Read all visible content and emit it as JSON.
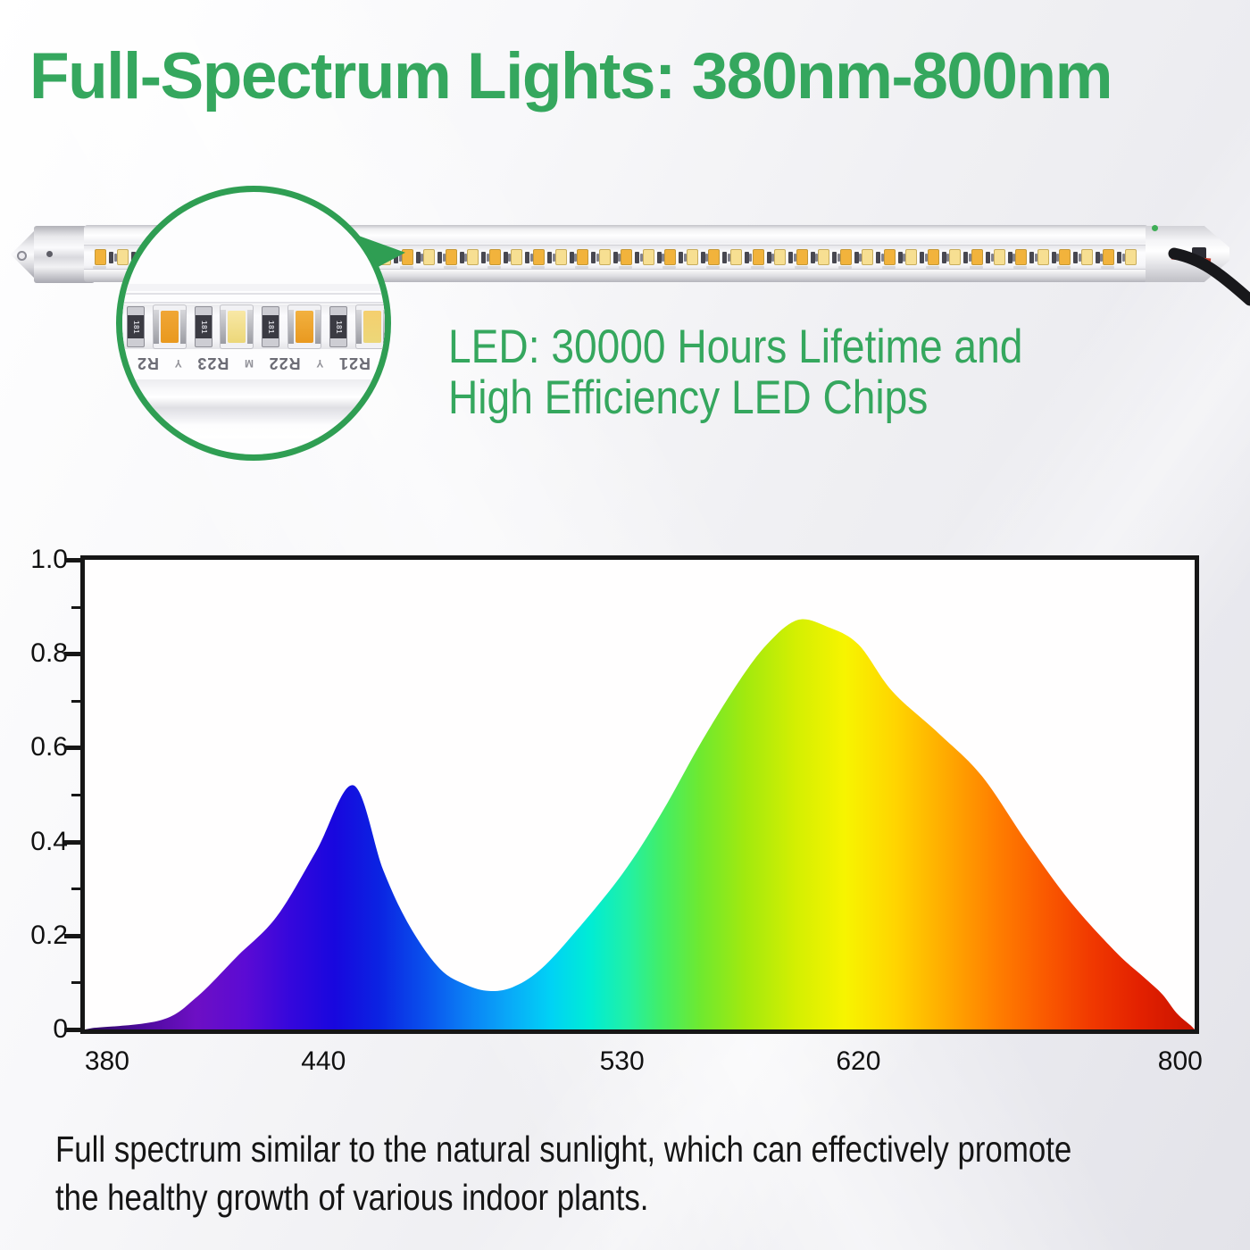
{
  "header": {
    "title": "Full-Spectrum Lights: 380nm-800nm"
  },
  "colors": {
    "accent_green": "#35a75e",
    "magnifier_ring_green": "#2f9e53",
    "axis_black": "#161616",
    "wire_black": "#18181b",
    "wire_red": "#c23a2a"
  },
  "hero": {
    "callout_line1": "LED: 30000 Hours Lifetime and",
    "callout_line2": "High Efficiency LED Chips",
    "magnifier": {
      "strip_labels": [
        "R21",
        "Y",
        "R22",
        "M",
        "R23",
        "Y",
        "R2"
      ],
      "resistor_label": "181",
      "chip_colors": [
        "#f0a636",
        "#f8e8a6",
        "#f2b140",
        "#f5cf6e"
      ]
    },
    "led_bar": {
      "chip_count": 48,
      "chip_color_warm": "#f2b33c",
      "chip_color_cool": "#f7df92"
    }
  },
  "chart_data": {
    "type": "area",
    "title": "",
    "xlabel": "",
    "ylabel": "",
    "x_range_nm": [
      380,
      800
    ],
    "ylim": [
      0,
      1
    ],
    "grid": false,
    "legend": false,
    "x_ticks": {
      "labels": [
        "380",
        "440",
        "530",
        "620",
        "800"
      ],
      "values": [
        380,
        440,
        530,
        620,
        800
      ],
      "positions": [
        0.02,
        0.215,
        0.484,
        0.697,
        0.987
      ]
    },
    "y_ticks": {
      "labels": [
        "1.0",
        "0.8",
        "0.6",
        "0.4",
        "0.2",
        "0"
      ],
      "values": [
        1.0,
        0.8,
        0.6,
        0.4,
        0.2,
        0
      ],
      "minor_values": [
        0.9,
        0.7,
        0.5,
        0.3,
        0.1
      ]
    },
    "points": [
      [
        376,
        0.003
      ],
      [
        395,
        0.02
      ],
      [
        405,
        0.07
      ],
      [
        416,
        0.155
      ],
      [
        427,
        0.24
      ],
      [
        438,
        0.38
      ],
      [
        449,
        0.52
      ],
      [
        458,
        0.34
      ],
      [
        466,
        0.22
      ],
      [
        475,
        0.13
      ],
      [
        483,
        0.095
      ],
      [
        490,
        0.082
      ],
      [
        497,
        0.09
      ],
      [
        505,
        0.125
      ],
      [
        515,
        0.2
      ],
      [
        530,
        0.33
      ],
      [
        545,
        0.46
      ],
      [
        560,
        0.61
      ],
      [
        575,
        0.745
      ],
      [
        586,
        0.825
      ],
      [
        597,
        0.872
      ],
      [
        608,
        0.858
      ],
      [
        620,
        0.82
      ],
      [
        639,
        0.72
      ],
      [
        665,
        0.63
      ],
      [
        689,
        0.54
      ],
      [
        714,
        0.4
      ],
      [
        739,
        0.27
      ],
      [
        764,
        0.165
      ],
      [
        780,
        0.11
      ],
      [
        790,
        0.075
      ],
      [
        798,
        0.035
      ],
      [
        806,
        0.008
      ]
    ],
    "peaks": [
      {
        "nm": 450,
        "intensity": 0.52
      },
      {
        "nm": 597,
        "intensity": 0.87
      }
    ],
    "valley": {
      "nm": 490,
      "intensity": 0.085
    },
    "gradient_stops": [
      [
        0.0,
        "#2d0a5e"
      ],
      [
        0.05,
        "#4c0b9b"
      ],
      [
        0.1,
        "#6d0fc4"
      ],
      [
        0.145,
        "#5b0bd4"
      ],
      [
        0.185,
        "#3507dc"
      ],
      [
        0.225,
        "#1807de"
      ],
      [
        0.265,
        "#0b23e2"
      ],
      [
        0.305,
        "#0a4fec"
      ],
      [
        0.345,
        "#0b80f5"
      ],
      [
        0.385,
        "#09acf8"
      ],
      [
        0.42,
        "#00d2f5"
      ],
      [
        0.455,
        "#00ecd5"
      ],
      [
        0.49,
        "#22f0a4"
      ],
      [
        0.52,
        "#43ee66"
      ],
      [
        0.555,
        "#6fe92f"
      ],
      [
        0.595,
        "#a2e90e"
      ],
      [
        0.64,
        "#d3ef02"
      ],
      [
        0.685,
        "#f7f400"
      ],
      [
        0.73,
        "#ffd500"
      ],
      [
        0.775,
        "#ffab00"
      ],
      [
        0.82,
        "#ff8000"
      ],
      [
        0.865,
        "#fa5a00"
      ],
      [
        0.905,
        "#f13a00"
      ],
      [
        0.95,
        "#e32100"
      ],
      [
        1.0,
        "#c91300"
      ]
    ]
  },
  "caption": {
    "lines": [
      "Full spectrum similar to the natural sunlight, which can effectively promote",
      "the healthy growth of various indoor plants."
    ]
  }
}
